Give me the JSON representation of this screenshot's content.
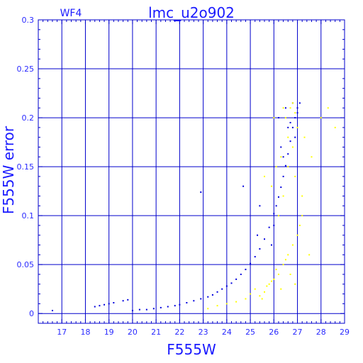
{
  "panel_label": "WF4",
  "colors": {
    "axis": "#0000cc",
    "text": "#2a2aff",
    "series_primary": "#0000dd",
    "series_secondary": "#ffff00",
    "background": "#ffffff"
  },
  "chart_data": {
    "type": "scatter",
    "title": "lmc_u2o902",
    "xlabel": "F555W",
    "ylabel": "F555W error",
    "xlim": [
      16.0,
      29.0
    ],
    "ylim": [
      -0.01,
      0.3
    ],
    "xticks": [
      17,
      18,
      19,
      20,
      21,
      22,
      23,
      24,
      25,
      26,
      27,
      28,
      29
    ],
    "yticks": [
      0,
      0.05,
      0.1,
      0.15,
      0.2,
      0.25,
      0.3
    ],
    "ytick_labels": [
      "0",
      "0.05",
      "0.1",
      "0.15",
      "0.2",
      "0.25",
      "0.3"
    ],
    "grid": true,
    "series": [
      {
        "color": "#0000dd",
        "x": [
          16.6,
          18.4,
          18.6,
          18.8,
          19.0,
          19.2,
          19.6,
          19.8,
          20.0,
          20.3,
          20.6,
          20.9,
          21.2,
          21.5,
          21.8,
          22.0,
          22.3,
          22.6,
          22.9,
          23.2,
          23.4,
          23.6,
          23.8,
          24.0,
          24.2,
          24.4,
          24.6,
          24.8,
          25.0,
          25.2,
          25.4,
          25.6,
          25.8,
          26.0,
          26.1,
          26.2,
          26.3,
          26.4,
          26.5,
          26.6,
          26.7,
          26.8,
          26.9,
          27.0,
          27.1,
          22.9,
          24.7,
          25.4,
          26.0,
          26.2,
          26.5,
          26.7,
          25.3,
          25.9,
          26.3,
          26.6,
          26.9,
          27.0,
          26.4,
          26.8
        ],
        "y": [
          0.003,
          0.007,
          0.008,
          0.009,
          0.01,
          0.011,
          0.013,
          0.014,
          0.003,
          0.004,
          0.004,
          0.005,
          0.006,
          0.007,
          0.008,
          0.009,
          0.011,
          0.013,
          0.015,
          0.017,
          0.019,
          0.022,
          0.025,
          0.028,
          0.031,
          0.035,
          0.04,
          0.045,
          0.051,
          0.058,
          0.066,
          0.076,
          0.088,
          0.102,
          0.11,
          0.119,
          0.129,
          0.14,
          0.151,
          0.163,
          0.176,
          0.19,
          0.2,
          0.21,
          0.215,
          0.124,
          0.13,
          0.11,
          0.09,
          0.2,
          0.21,
          0.195,
          0.08,
          0.07,
          0.17,
          0.19,
          0.18,
          0.205,
          0.16,
          0.215
        ]
      },
      {
        "color": "#ffff00",
        "x": [
          23.2,
          23.6,
          24.0,
          24.4,
          24.8,
          25.0,
          25.2,
          25.4,
          25.6,
          25.8,
          26.0,
          26.2,
          26.4,
          26.6,
          26.8,
          27.0,
          25.5,
          25.7,
          25.9,
          26.1,
          26.3,
          26.5,
          26.7,
          26.9,
          27.1,
          26.2,
          26.4,
          26.6,
          26.8,
          27.0,
          26.5,
          26.7,
          26.9,
          27.3,
          27.6,
          28.0,
          28.3,
          28.6,
          26.3,
          26.6,
          26.9,
          27.2,
          25.9,
          26.1,
          25.6,
          26.0,
          26.4,
          26.8,
          27.2,
          27.5
        ],
        "y": [
          0.005,
          0.008,
          0.01,
          0.012,
          0.015,
          0.02,
          0.025,
          0.018,
          0.022,
          0.03,
          0.035,
          0.04,
          0.05,
          0.06,
          0.07,
          0.08,
          0.015,
          0.028,
          0.033,
          0.045,
          0.025,
          0.055,
          0.04,
          0.03,
          0.09,
          0.1,
          0.12,
          0.15,
          0.17,
          0.19,
          0.2,
          0.21,
          0.205,
          0.18,
          0.16,
          0.2,
          0.21,
          0.19,
          0.16,
          0.18,
          0.14,
          0.1,
          0.13,
          0.15,
          0.14,
          0.2,
          0.21,
          0.215,
          0.12,
          0.06
        ]
      }
    ]
  }
}
